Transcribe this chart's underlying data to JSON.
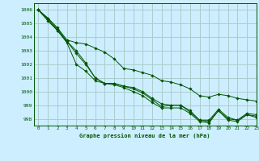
{
  "title": "Graphe pression niveau de la mer (hPa)",
  "bg_color": "#cceeff",
  "grid_color": "#aacccc",
  "line_color": "#005500",
  "xlim": [
    -0.5,
    23
  ],
  "ylim": [
    997.5,
    1006.5
  ],
  "yticks": [
    998,
    999,
    1000,
    1001,
    1002,
    1003,
    1004,
    1005,
    1006
  ],
  "xticks": [
    0,
    1,
    2,
    3,
    4,
    5,
    6,
    7,
    8,
    9,
    10,
    11,
    12,
    13,
    14,
    15,
    16,
    17,
    18,
    19,
    20,
    21,
    22,
    23
  ],
  "series": [
    [
      1006,
      1005.4,
      1004.6,
      1003.7,
      1002.8,
      1002.0,
      1001.0,
      1000.6,
      1000.6,
      1000.4,
      1000.3,
      1000.0,
      999.5,
      999.1,
      999.0,
      999.0,
      998.6,
      997.9,
      997.9,
      998.7,
      998.1,
      997.9,
      998.4,
      998.3
    ],
    [
      1006,
      1005.2,
      1004.5,
      1003.7,
      1003.0,
      1002.1,
      1001.0,
      1000.6,
      1000.6,
      1000.4,
      1000.2,
      999.9,
      999.4,
      998.9,
      999.0,
      999.0,
      998.5,
      997.9,
      997.8,
      998.6,
      998.0,
      997.9,
      998.3,
      998.2
    ],
    [
      1006,
      1005.3,
      1004.5,
      1003.6,
      1002.0,
      1001.5,
      1000.8,
      1000.6,
      1000.5,
      1000.3,
      1000.0,
      999.7,
      999.2,
      998.8,
      998.8,
      998.8,
      998.4,
      997.8,
      997.7,
      998.6,
      997.9,
      997.8,
      998.3,
      998.1
    ],
    [
      1006,
      1005.4,
      1004.7,
      1003.8,
      1003.6,
      1003.5,
      1003.2,
      1002.9,
      1002.4,
      1001.7,
      1001.6,
      1001.4,
      1001.2,
      1000.8,
      1000.7,
      1000.5,
      1000.2,
      999.7,
      999.6,
      999.8,
      999.7,
      999.5,
      999.4,
      999.3
    ]
  ]
}
